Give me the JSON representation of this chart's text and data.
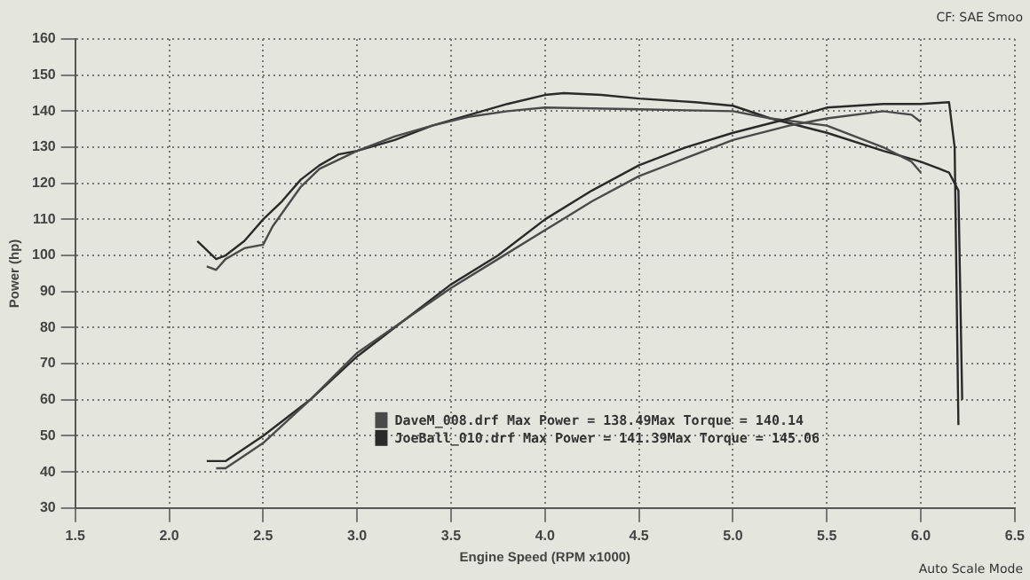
{
  "chart_data": {
    "type": "line",
    "xlabel": "Engine Speed (RPM x1000)",
    "ylabel": "Power (hp)",
    "annotations": [
      "CF: SAE Smoo",
      "Auto Scale Mode"
    ],
    "xlim": [
      1.5,
      6.5
    ],
    "xticks": [
      {
        "value": 1.5,
        "label": "1.5"
      },
      {
        "value": 2,
        "label": "2.0"
      },
      {
        "value": 2.5,
        "label": "2.5"
      },
      {
        "value": 3,
        "label": "3.0"
      },
      {
        "value": 3.5,
        "label": "3.5"
      },
      {
        "value": 4,
        "label": "4.0"
      },
      {
        "value": 4.5,
        "label": "4.5"
      },
      {
        "value": 5,
        "label": "5.0"
      },
      {
        "value": 5.5,
        "label": "5.5"
      },
      {
        "value": 6,
        "label": "6.0"
      },
      {
        "value": 6.5,
        "label": "6.5"
      }
    ],
    "ylim": [
      30,
      160
    ],
    "yticks": [
      30,
      40,
      50,
      60,
      70,
      80,
      90,
      100,
      110,
      120,
      130,
      140,
      150,
      160
    ],
    "grid": true,
    "legend": "bottom",
    "marker": "none",
    "line_style": "solid",
    "series": [
      {
        "name": "DaveM_008.drf Max Power = 138.49Max Torque = 140.14",
        "color": "#4a4a4a",
        "x": [
          2.25,
          2.3,
          2.5,
          2.75,
          3,
          3.25,
          3.5,
          3.75,
          4,
          4.25,
          4.5,
          4.75,
          5,
          5.3,
          5.5,
          5.8,
          5.95,
          6
        ],
        "values": [
          41,
          41,
          48,
          60,
          73,
          82,
          91,
          99,
          107,
          115,
          122,
          127,
          132,
          136,
          138,
          140,
          139,
          137
        ]
      },
      {
        "name": "JoeBall_010.drf Max Power = 141.39Max Torque = 145.06",
        "color": "#2a2a2a",
        "x": [
          2.2,
          2.3,
          2.5,
          2.75,
          3,
          3.25,
          3.5,
          3.75,
          4,
          4.25,
          4.5,
          4.75,
          5,
          5.3,
          5.5,
          5.8,
          6,
          6.15,
          6.18,
          6.2
        ],
        "values": [
          43,
          43,
          50,
          60,
          72,
          82,
          92,
          100,
          110,
          118,
          125,
          130,
          134,
          138,
          141,
          142,
          142,
          142.5,
          130,
          53
        ]
      },
      {
        "color": "#4a4a4a",
        "x": [
          2.2,
          2.25,
          2.3,
          2.4,
          2.5,
          2.55,
          2.7,
          2.8,
          3,
          3.2,
          3.4,
          3.6,
          3.8,
          4,
          4.5,
          5,
          5.2,
          5.5,
          5.8,
          5.95,
          6
        ],
        "values": [
          97,
          96,
          99,
          102,
          103,
          108,
          119,
          124,
          129,
          133,
          136,
          138.5,
          140,
          141,
          140.5,
          140,
          138,
          136,
          130,
          126,
          123
        ]
      },
      {
        "color": "#2a2a2a",
        "x": [
          2.15,
          2.25,
          2.3,
          2.4,
          2.5,
          2.6,
          2.7,
          2.8,
          2.9,
          3,
          3.2,
          3.4,
          3.6,
          3.8,
          4,
          4.1,
          4.3,
          4.5,
          4.8,
          5,
          5.2,
          5.5,
          5.8,
          6,
          6.1,
          6.15,
          6.2,
          6.22
        ],
        "values": [
          104,
          99,
          100,
          104,
          110,
          115,
          121,
          125,
          128,
          129,
          132,
          136,
          139,
          142,
          144.5,
          145,
          144.5,
          143.5,
          142.5,
          141.5,
          138,
          134,
          129,
          126,
          124,
          123,
          118,
          60
        ]
      }
    ]
  }
}
